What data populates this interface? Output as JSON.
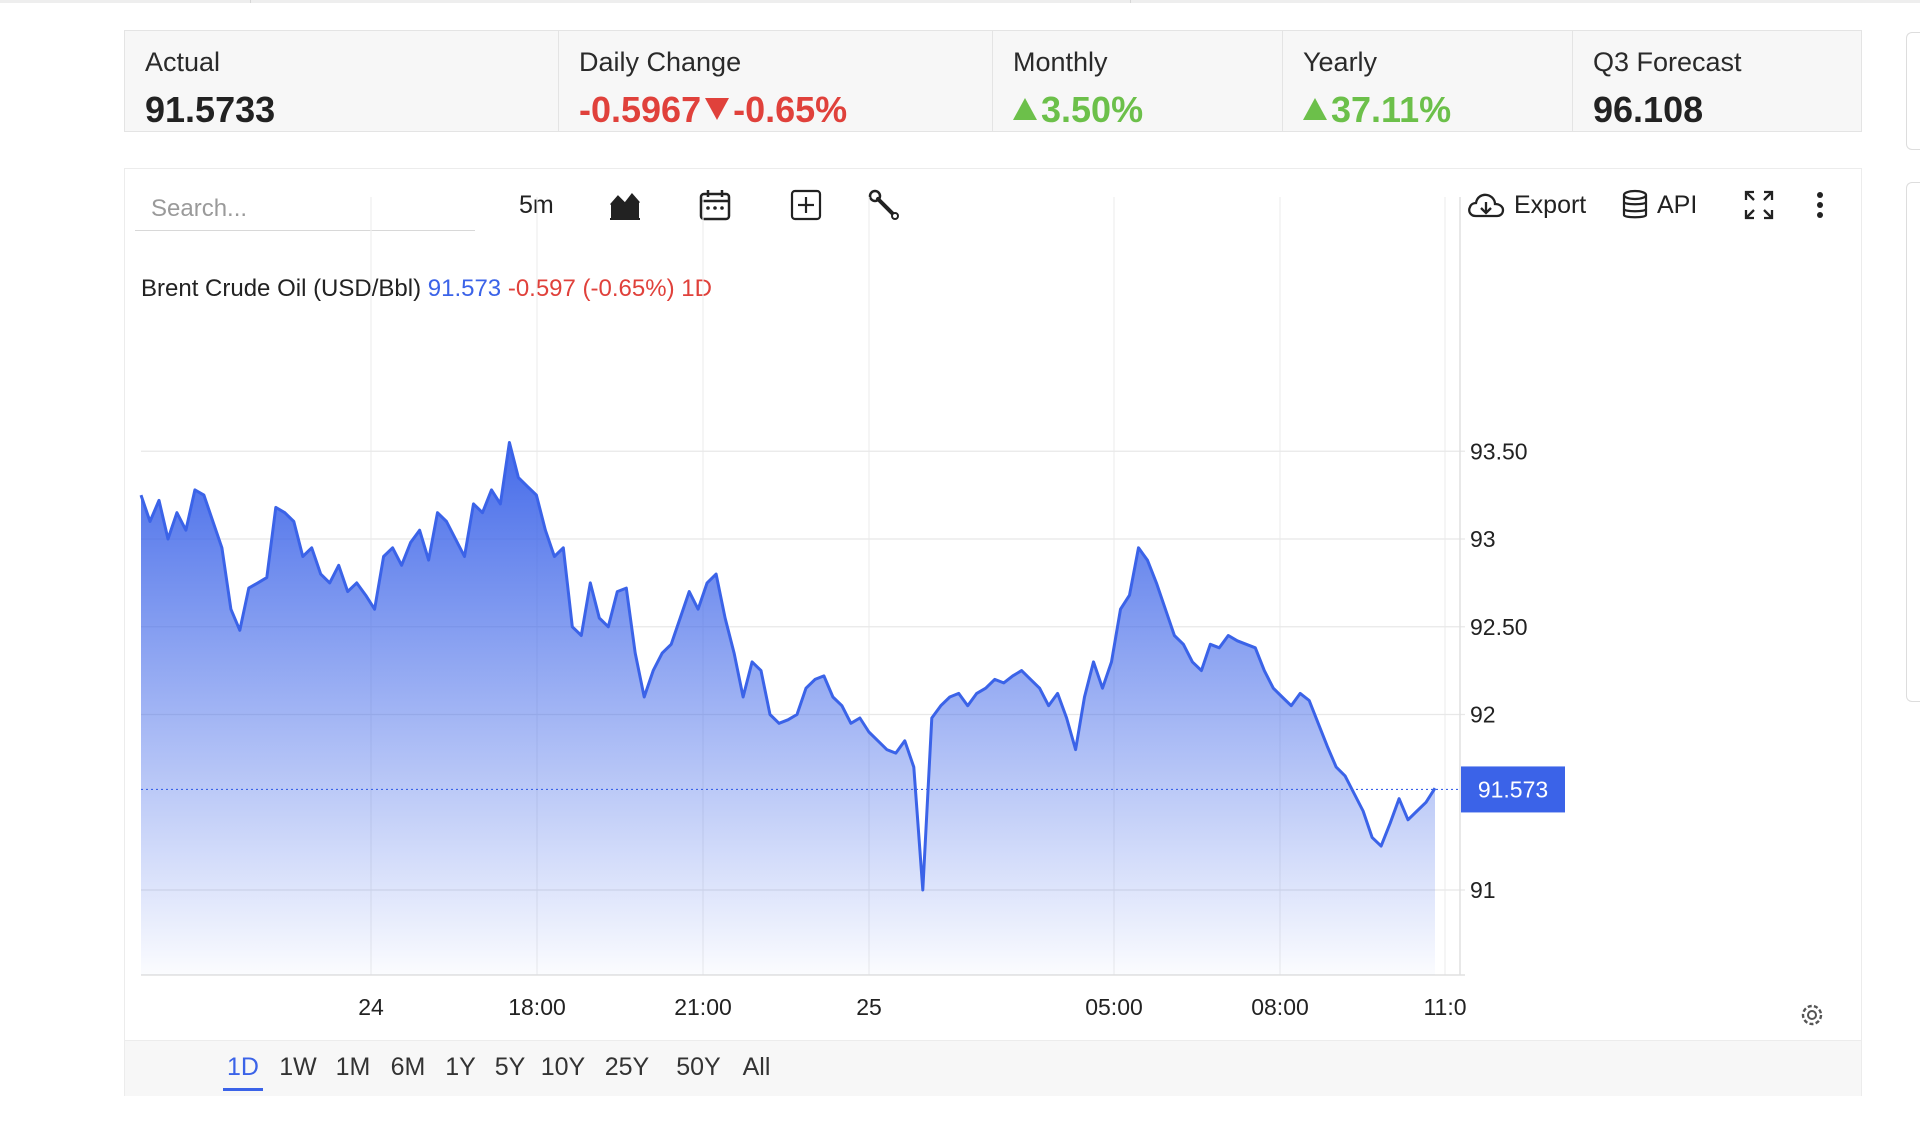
{
  "stats": [
    {
      "label": "Actual",
      "value": "91.5733",
      "trend": "none"
    },
    {
      "label": "Daily Change",
      "value": "-0.5967",
      "value2": "-0.65%",
      "trend": "down"
    },
    {
      "label": "Monthly",
      "value": "3.50%",
      "trend": "up"
    },
    {
      "label": "Yearly",
      "value": "37.11%",
      "trend": "up"
    },
    {
      "label": "Q3 Forecast",
      "value": "96.108",
      "trend": "none"
    }
  ],
  "toolbar": {
    "search_placeholder": "Search...",
    "interval": "5m",
    "export_label": "Export",
    "api_label": "API",
    "icons": [
      "chart-type-icon",
      "calendar-icon",
      "add-indicator-icon",
      "wrench-icon",
      "cloud-download-icon",
      "database-icon",
      "fullscreen-icon",
      "more-vertical-icon"
    ]
  },
  "legend": {
    "title": "Brent Crude Oil (USD/Bbl)",
    "price": "91.573",
    "change": "-0.597 (-0.65%) 1D"
  },
  "colors": {
    "line": "#3b63e8",
    "negative": "#e0413b",
    "positive": "#6cc04a",
    "price_tag_bg": "#3b63e8"
  },
  "chart_data": {
    "type": "area",
    "yticks": [
      "93.50",
      "93",
      "92.50",
      "92",
      "91"
    ],
    "ytick_values": [
      93.5,
      93,
      92.5,
      92,
      91
    ],
    "ylim": [
      90.5,
      94.0
    ],
    "xlabels": [
      "24",
      "18:00",
      "21:00",
      "25",
      "05:00",
      "08:00",
      "11:0"
    ],
    "current_price": 91.573,
    "current_label": "91.573",
    "grid": true,
    "series": [
      {
        "values": [
          93.25,
          93.1,
          93.22,
          93.0,
          93.15,
          93.05,
          93.28,
          93.25,
          93.1,
          92.95,
          92.6,
          92.48,
          92.72,
          92.75,
          92.78,
          93.18,
          93.15,
          93.1,
          92.9,
          92.95,
          92.8,
          92.75,
          92.85,
          92.7,
          92.75,
          92.68,
          92.6,
          92.9,
          92.95,
          92.85,
          92.98,
          93.05,
          92.88,
          93.15,
          93.1,
          93.0,
          92.9,
          93.2,
          93.15,
          93.28,
          93.2,
          93.55,
          93.35,
          93.3,
          93.25,
          93.05,
          92.9,
          92.95,
          92.5,
          92.45,
          92.75,
          92.55,
          92.5,
          92.7,
          92.72,
          92.35,
          92.1,
          92.25,
          92.35,
          92.4,
          92.55,
          92.7,
          92.6,
          92.75,
          92.8,
          92.55,
          92.35,
          92.1,
          92.3,
          92.25,
          92.0,
          91.95,
          91.97,
          92.0,
          92.15,
          92.2,
          92.22,
          92.1,
          92.05,
          91.95,
          91.98,
          91.9,
          91.85,
          91.8,
          91.78,
          91.85,
          91.7,
          91.0,
          91.98,
          92.05,
          92.1,
          92.12,
          92.05,
          92.12,
          92.15,
          92.2,
          92.18,
          92.22,
          92.25,
          92.2,
          92.15,
          92.05,
          92.12,
          91.98,
          91.8,
          92.1,
          92.3,
          92.15,
          92.3,
          92.6,
          92.68,
          92.95,
          92.88,
          92.75,
          92.6,
          92.45,
          92.4,
          92.3,
          92.25,
          92.4,
          92.38,
          92.45,
          92.42,
          92.4,
          92.38,
          92.25,
          92.15,
          92.1,
          92.05,
          92.12,
          92.08,
          91.95,
          91.82,
          91.7,
          91.65,
          91.55,
          91.45,
          91.3,
          91.25,
          91.38,
          91.52,
          91.4,
          91.45,
          91.5,
          91.58
        ]
      }
    ]
  },
  "ranges": [
    "1D",
    "1W",
    "1M",
    "6M",
    "1Y",
    "5Y",
    "10Y",
    "25Y",
    "50Y",
    "All"
  ],
  "active_range": "1D"
}
